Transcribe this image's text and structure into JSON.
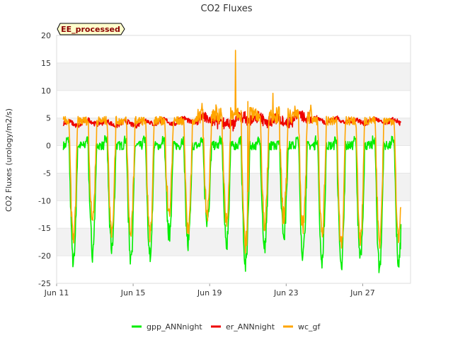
{
  "chart_data": {
    "type": "line",
    "title": "CO2 Fluxes",
    "xlabel": "",
    "ylabel": "CO2 Fluxes (urology/m2/s)",
    "badge": "EE_processed",
    "ylim": [
      -25,
      20
    ],
    "xlim_days": [
      0,
      18.5
    ],
    "yticks": [
      20,
      15,
      10,
      5,
      0,
      -5,
      -10,
      -15,
      -20,
      -25
    ],
    "xticks": [
      {
        "label": "Jun 11",
        "day": 0
      },
      {
        "label": "Jun 15",
        "day": 4
      },
      {
        "label": "Jun 19",
        "day": 8
      },
      {
        "label": "Jun 23",
        "day": 12
      },
      {
        "label": "Jun 27",
        "day": 16
      }
    ],
    "grid": true,
    "legend_position": "bottom-center",
    "series": [
      {
        "name": "gpp_ANNnight",
        "color": "#00ee00",
        "x_start_day": 0.35,
        "step_days": 0.125,
        "night_value": 0.0,
        "daily_minimum": [
          -21,
          -19,
          -19,
          -20,
          -20,
          -16,
          -18,
          -13,
          -18,
          -22,
          -19,
          -16,
          -20,
          -21,
          -22,
          -21,
          -22,
          -22
        ]
      },
      {
        "name": "er_ANNnight",
        "color": "#ee0000",
        "x_start_day": 0.35,
        "step_days": 0.125,
        "daily_mean": [
          4.0,
          4.3,
          4.0,
          4.0,
          4.3,
          4.3,
          4.6,
          4.8,
          4.0,
          5.0,
          4.6,
          4.6,
          5.2,
          4.6,
          4.6,
          4.4,
          4.5,
          4.3
        ]
      },
      {
        "name": "wc_gf",
        "color": "#ffa500",
        "x_start_day": 0.35,
        "step_days": 0.125,
        "night_value": 4.5,
        "daily_minimum": [
          -17,
          -13,
          -15,
          -16,
          -16,
          -12,
          -15,
          -12,
          -14,
          -18,
          -14,
          -13,
          -15,
          -16,
          -18,
          -17,
          -17,
          -17
        ],
        "peaks": [
          {
            "day": 9.35,
            "value": 17.3
          },
          {
            "day": 11.3,
            "value": 9.5
          },
          {
            "day": 10.0,
            "value": 8.0
          }
        ]
      }
    ]
  }
}
